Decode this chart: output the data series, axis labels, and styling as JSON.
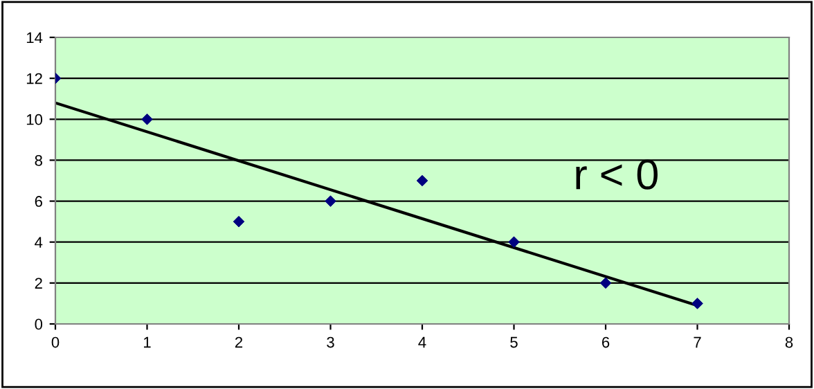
{
  "chart_data": {
    "type": "scatter",
    "x": [
      0,
      1,
      2,
      3,
      4,
      5,
      6,
      7
    ],
    "series": [
      {
        "color": "#000080",
        "values": [
          12,
          10,
          5,
          6,
          7,
          4,
          2,
          1
        ],
        "marker": "diamond"
      },
      {
        "type": "line",
        "color": "#000000",
        "x": [
          0,
          7
        ],
        "values": [
          10.8,
          0.9
        ],
        "marker": "none"
      }
    ],
    "xlim": [
      0,
      8
    ],
    "xticks": [
      0,
      1,
      2,
      3,
      4,
      5,
      6,
      7,
      8
    ],
    "ylim": [
      0,
      14
    ],
    "yticks": [
      0,
      2,
      4,
      6,
      8,
      10,
      12,
      14
    ],
    "grid": "y",
    "legend": false,
    "annotations": [
      "r < 0"
    ]
  }
}
